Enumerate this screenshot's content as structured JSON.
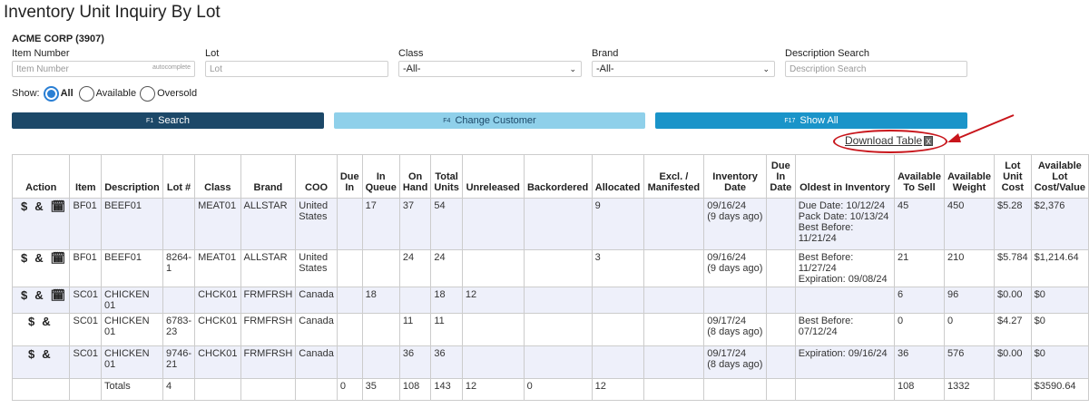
{
  "page_title": "Inventory Unit Inquiry By Lot",
  "company": "ACME CORP (3907)",
  "filters": {
    "item_number": {
      "label": "Item Number",
      "placeholder": "Item Number",
      "hint": "autocomplete"
    },
    "lot": {
      "label": "Lot",
      "placeholder": "Lot"
    },
    "class": {
      "label": "Class",
      "value": "-All-"
    },
    "brand": {
      "label": "Brand",
      "value": "-All-"
    },
    "description": {
      "label": "Description Search",
      "placeholder": "Description Search"
    }
  },
  "show": {
    "label": "Show:",
    "options": [
      "All",
      "Available",
      "Oversold"
    ],
    "selected": "All"
  },
  "buttons": {
    "search": {
      "key": "F1",
      "label": "Search"
    },
    "change_customer": {
      "key": "F4",
      "label": "Change Customer"
    },
    "show_all": {
      "key": "F17",
      "label": "Show All"
    }
  },
  "download_label": "Download Table",
  "icons": {
    "dollar": "$",
    "link": "&",
    "calendar": "calendar-icon"
  },
  "colors": {
    "primary": "#1c4868",
    "light": "#8fd0ea",
    "accent": "#1a94c9",
    "annotation": "#c8151b",
    "row_alt": "#eef0fa"
  },
  "table": {
    "headers": [
      "Action",
      "Item",
      "Description",
      "Lot #",
      "Class",
      "Brand",
      "COO",
      "Due In",
      "In Queue",
      "On Hand",
      "Total Units",
      "Unreleased",
      "Backordered",
      "Allocated",
      "Excl. / Manifested",
      "Inventory Date",
      "Due In Date",
      "Oldest in Inventory",
      "Available To Sell",
      "Available Weight",
      "Lot Unit Cost",
      "Available Lot Cost/Value"
    ],
    "rows": [
      {
        "item": "BF01",
        "description": "BEEF01",
        "lot": "",
        "class": "MEAT01",
        "brand": "ALLSTAR",
        "coo": "United States",
        "due_in": "",
        "in_queue": "17",
        "on_hand": "37",
        "total": "54",
        "unreleased": "",
        "backordered": "",
        "allocated": "9",
        "excl": "",
        "inv_date": "09/16/24",
        "inv_ago": "(9 days ago)",
        "due_date": "",
        "oldest": [
          "Due Date: 10/12/24",
          "Pack Date: 10/13/24",
          "Best Before: 11/21/24"
        ],
        "ats": "45",
        "weight": "450",
        "cost": "$5.28",
        "value": "$2,376"
      },
      {
        "item": "BF01",
        "description": "BEEF01",
        "lot": "8264-1",
        "class": "MEAT01",
        "brand": "ALLSTAR",
        "coo": "United States",
        "due_in": "",
        "in_queue": "",
        "on_hand": "24",
        "total": "24",
        "unreleased": "",
        "backordered": "",
        "allocated": "3",
        "excl": "",
        "inv_date": "09/16/24",
        "inv_ago": "(9 days ago)",
        "due_date": "",
        "oldest": [
          "Best Before: 11/27/24",
          "Expiration: 09/08/24"
        ],
        "ats": "21",
        "weight": "210",
        "cost": "$5.784",
        "value": "$1,214.64"
      },
      {
        "item": "SC01",
        "description": "CHICKEN 01",
        "lot": "",
        "class": "CHCK01",
        "brand": "FRMFRSH",
        "coo": "Canada",
        "due_in": "",
        "in_queue": "18",
        "on_hand": "",
        "total": "18",
        "unreleased": "12",
        "backordered": "",
        "allocated": "",
        "excl": "",
        "inv_date": "",
        "inv_ago": "",
        "due_date": "",
        "oldest": [],
        "ats": "6",
        "weight": "96",
        "cost": "$0.00",
        "value": "$0"
      },
      {
        "item": "SC01",
        "description": "CHICKEN 01",
        "lot": "6783-23",
        "class": "CHCK01",
        "brand": "FRMFRSH",
        "coo": "Canada",
        "due_in": "",
        "in_queue": "",
        "on_hand": "11",
        "total": "11",
        "unreleased": "",
        "backordered": "",
        "allocated": "",
        "excl": "",
        "inv_date": "09/17/24",
        "inv_ago": "(8 days ago)",
        "due_date": "",
        "oldest": [
          "Best Before: 07/12/24"
        ],
        "ats": "0",
        "weight": "0",
        "cost": "$4.27",
        "value": "$0"
      },
      {
        "item": "SC01",
        "description": "CHICKEN 01",
        "lot": "9746-21",
        "class": "CHCK01",
        "brand": "FRMFRSH",
        "coo": "Canada",
        "due_in": "",
        "in_queue": "",
        "on_hand": "36",
        "total": "36",
        "unreleased": "",
        "backordered": "",
        "allocated": "",
        "excl": "",
        "inv_date": "09/17/24",
        "inv_ago": "(8 days ago)",
        "due_date": "",
        "oldest": [
          "Expiration: 09/16/24"
        ],
        "ats": "36",
        "weight": "576",
        "cost": "$0.00",
        "value": "$0"
      }
    ],
    "totals": {
      "label": "Totals",
      "lot": "4",
      "due_in": "0",
      "in_queue": "35",
      "on_hand": "108",
      "total": "143",
      "unreleased": "12",
      "backordered": "0",
      "allocated": "12",
      "ats": "108",
      "weight": "1332",
      "value": "$3590.64"
    }
  }
}
